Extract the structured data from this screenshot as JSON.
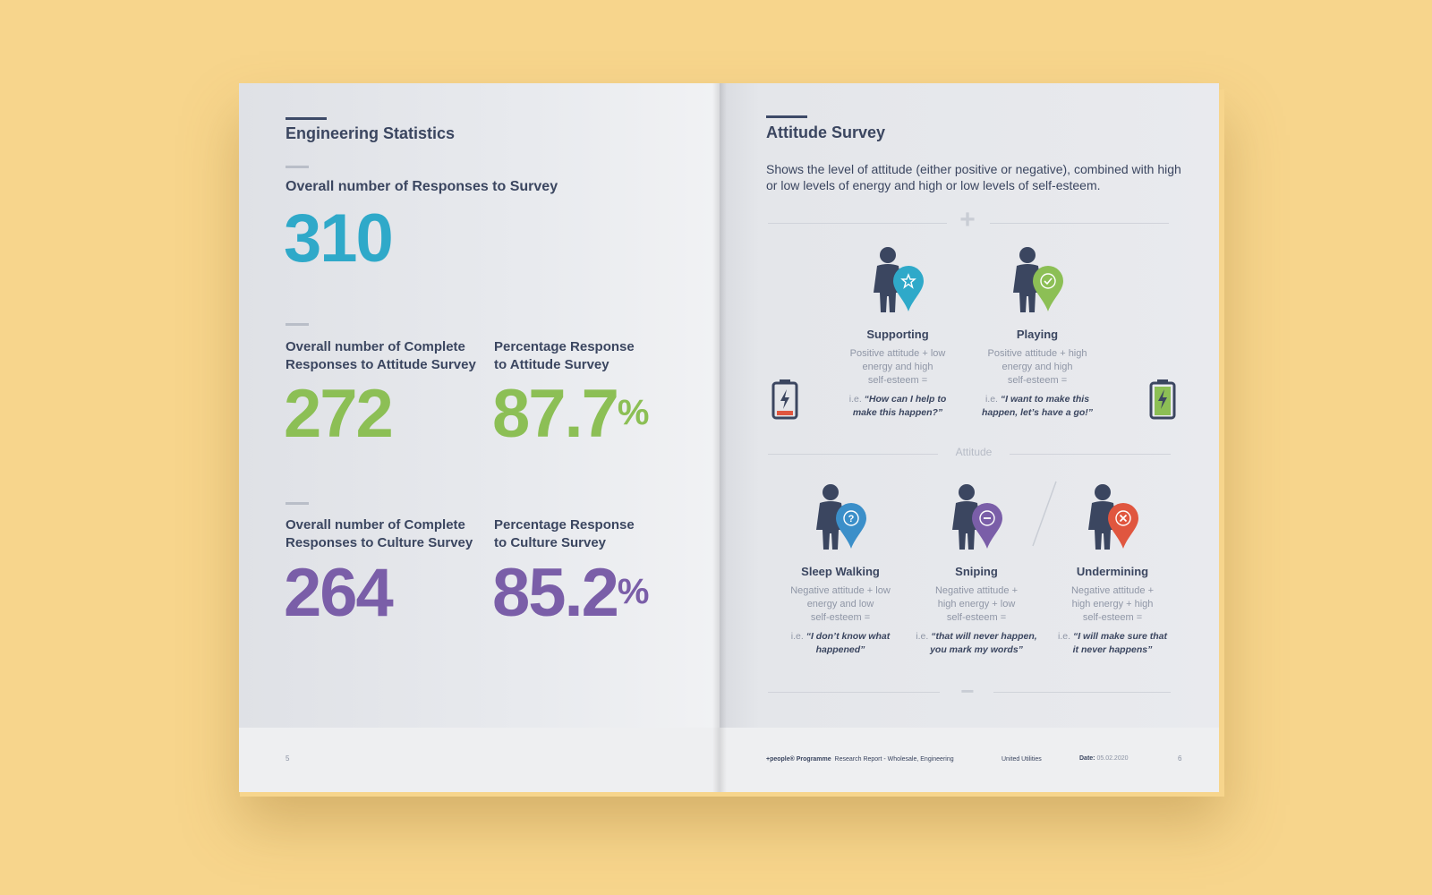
{
  "left_page": {
    "heading": "Engineering Statistics",
    "stat1": {
      "label": "Overall number of Responses to Survey",
      "value": "310"
    },
    "stat2": {
      "label_l1": "Overall number of Complete",
      "label_l2": "Responses to Attitude Survey",
      "value": "272"
    },
    "stat3": {
      "label_l1": "Percentage Response",
      "label_l2": "to Attitude Survey",
      "value": "87.7",
      "unit": "%"
    },
    "stat4": {
      "label_l1": "Overall number of Complete",
      "label_l2": "Responses to Culture Survey",
      "value": "264"
    },
    "stat5": {
      "label_l1": "Percentage Response",
      "label_l2": "to Culture Survey",
      "value": "85.2",
      "unit": "%"
    },
    "page_number": "5"
  },
  "right_page": {
    "heading": "Attitude Survey",
    "description": "Shows the level of attitude (either positive or negative), combined with high or low levels of energy and high or low levels of self-esteem.",
    "plus_symbol": "+",
    "minus_symbol": "−",
    "axis_label": "Attitude",
    "types": [
      {
        "title": "Supporting",
        "desc_l1": "Positive attitude + low",
        "desc_l2": "energy and high",
        "desc_l3": "self-esteem =",
        "ie": "i.e.",
        "quote_l1": "“How can I help to",
        "quote_l2": "make this happen?”",
        "color": "#2fa9c9",
        "icon": "star-icon"
      },
      {
        "title": "Playing",
        "desc_l1": "Positive attitude + high",
        "desc_l2": "energy and high",
        "desc_l3": "self-esteem =",
        "ie": "i.e.",
        "quote_l1": "“I want to make this",
        "quote_l2": "happen, let’s have a go!”",
        "color": "#8cbf55",
        "icon": "check-icon"
      },
      {
        "title": "Sleep Walking",
        "desc_l1": "Negative attitude + low",
        "desc_l2": "energy and low",
        "desc_l3": "self-esteem =",
        "ie": "i.e.",
        "quote_l1": "“I don’t know what",
        "quote_l2": "happened”",
        "color": "#3b8fc9",
        "icon": "question-icon"
      },
      {
        "title": "Sniping",
        "desc_l1": "Negative attitude +",
        "desc_l2": "high energy + low",
        "desc_l3": "self-esteem =",
        "ie": "i.e.",
        "quote_l1": "“that will never happen,",
        "quote_l2": "you mark my words”",
        "color": "#7a5ea8",
        "icon": "minus-icon"
      },
      {
        "title": "Undermining",
        "desc_l1": "Negative attitude +",
        "desc_l2": "high energy + high",
        "desc_l3": "self-esteem =",
        "ie": "i.e.",
        "quote_l1": "“I will make sure that",
        "quote_l2": "it never happens”",
        "color": "#e0563f",
        "icon": "cross-icon"
      }
    ],
    "footer": {
      "programme": "+people® Programme",
      "report": "Research Report - Wholesale, Engineering",
      "company": "United Utilities",
      "date_label": "Date:",
      "date_value": "05.02.2020",
      "page_number": "6"
    },
    "battery_low_color": "#e0563f",
    "battery_high_color": "#8cbf55"
  }
}
